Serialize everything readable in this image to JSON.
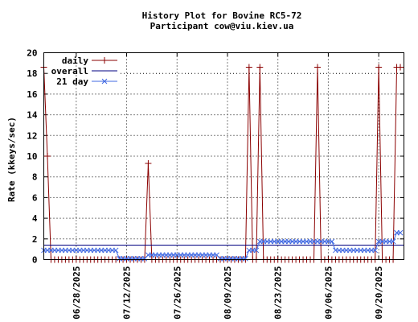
{
  "chart_data": {
    "type": "line",
    "title": "History Plot for Bovine RC5-72",
    "subtitle": "Participant cow@viu.kiev.ua",
    "xlabel": "",
    "ylabel": "Rate (kkeys/sec)",
    "ylim": [
      0,
      20
    ],
    "yticks": [
      "0",
      "2",
      "4",
      "6",
      "8",
      "10",
      "12",
      "14",
      "16",
      "18",
      "20"
    ],
    "xlim": [
      "2025-06-19",
      "2025-09-27"
    ],
    "xticks": [
      "06/28/2025",
      "07/12/2025",
      "07/26/2025",
      "08/09/2025",
      "08/23/2025",
      "09/06/2025",
      "09/20/2025"
    ],
    "xtick_dates": [
      "2025-06-28",
      "2025-07-12",
      "2025-07-26",
      "2025-08-09",
      "2025-08-23",
      "2025-09-06",
      "2025-09-20"
    ],
    "grid": true,
    "legend_position": "top-left",
    "series": [
      {
        "name": "daily",
        "color": "#8b0000",
        "marker": "plus",
        "points": [
          [
            "2025-06-19",
            18.6
          ],
          [
            "2025-06-20",
            10.0
          ],
          [
            "2025-06-21",
            0.0
          ],
          [
            "2025-06-22",
            0.0
          ],
          [
            "2025-06-23",
            0.0
          ],
          [
            "2025-06-24",
            0.0
          ],
          [
            "2025-06-25",
            0.0
          ],
          [
            "2025-06-26",
            0.0
          ],
          [
            "2025-06-27",
            0.0
          ],
          [
            "2025-06-28",
            0.0
          ],
          [
            "2025-06-29",
            0.0
          ],
          [
            "2025-06-30",
            0.0
          ],
          [
            "2025-07-01",
            0.0
          ],
          [
            "2025-07-02",
            0.0
          ],
          [
            "2025-07-03",
            0.0
          ],
          [
            "2025-07-04",
            0.0
          ],
          [
            "2025-07-05",
            0.0
          ],
          [
            "2025-07-06",
            0.0
          ],
          [
            "2025-07-07",
            0.0
          ],
          [
            "2025-07-08",
            0.0
          ],
          [
            "2025-07-09",
            0.0
          ],
          [
            "2025-07-10",
            0.0
          ],
          [
            "2025-07-11",
            0.0
          ],
          [
            "2025-07-12",
            0.0
          ],
          [
            "2025-07-13",
            0.0
          ],
          [
            "2025-07-14",
            0.0
          ],
          [
            "2025-07-15",
            0.0
          ],
          [
            "2025-07-16",
            0.0
          ],
          [
            "2025-07-17",
            0.0
          ],
          [
            "2025-07-18",
            9.3
          ],
          [
            "2025-07-19",
            0.0
          ],
          [
            "2025-07-20",
            0.0
          ],
          [
            "2025-07-21",
            0.0
          ],
          [
            "2025-07-22",
            0.0
          ],
          [
            "2025-07-23",
            0.0
          ],
          [
            "2025-07-24",
            0.0
          ],
          [
            "2025-07-25",
            0.0
          ],
          [
            "2025-07-26",
            0.0
          ],
          [
            "2025-07-27",
            0.0
          ],
          [
            "2025-07-28",
            0.0
          ],
          [
            "2025-07-29",
            0.0
          ],
          [
            "2025-07-30",
            0.0
          ],
          [
            "2025-07-31",
            0.0
          ],
          [
            "2025-08-01",
            0.0
          ],
          [
            "2025-08-02",
            0.0
          ],
          [
            "2025-08-03",
            0.0
          ],
          [
            "2025-08-04",
            0.0
          ],
          [
            "2025-08-05",
            0.0
          ],
          [
            "2025-08-06",
            0.0
          ],
          [
            "2025-08-07",
            0.0
          ],
          [
            "2025-08-08",
            0.0
          ],
          [
            "2025-08-09",
            0.0
          ],
          [
            "2025-08-10",
            0.0
          ],
          [
            "2025-08-11",
            0.0
          ],
          [
            "2025-08-12",
            0.0
          ],
          [
            "2025-08-13",
            0.0
          ],
          [
            "2025-08-14",
            0.0
          ],
          [
            "2025-08-15",
            18.6
          ],
          [
            "2025-08-16",
            0.0
          ],
          [
            "2025-08-17",
            0.0
          ],
          [
            "2025-08-18",
            18.6
          ],
          [
            "2025-08-19",
            0.0
          ],
          [
            "2025-08-20",
            0.0
          ],
          [
            "2025-08-21",
            0.0
          ],
          [
            "2025-08-22",
            0.0
          ],
          [
            "2025-08-23",
            0.0
          ],
          [
            "2025-08-24",
            0.0
          ],
          [
            "2025-08-25",
            0.0
          ],
          [
            "2025-08-26",
            0.0
          ],
          [
            "2025-08-27",
            0.0
          ],
          [
            "2025-08-28",
            0.0
          ],
          [
            "2025-08-29",
            0.0
          ],
          [
            "2025-08-30",
            0.0
          ],
          [
            "2025-08-31",
            0.0
          ],
          [
            "2025-09-01",
            0.0
          ],
          [
            "2025-09-02",
            0.0
          ],
          [
            "2025-09-03",
            18.6
          ],
          [
            "2025-09-04",
            0.0
          ],
          [
            "2025-09-05",
            0.0
          ],
          [
            "2025-09-06",
            0.0
          ],
          [
            "2025-09-07",
            0.0
          ],
          [
            "2025-09-08",
            0.0
          ],
          [
            "2025-09-09",
            0.0
          ],
          [
            "2025-09-10",
            0.0
          ],
          [
            "2025-09-11",
            0.0
          ],
          [
            "2025-09-12",
            0.0
          ],
          [
            "2025-09-13",
            0.0
          ],
          [
            "2025-09-14",
            0.0
          ],
          [
            "2025-09-15",
            0.0
          ],
          [
            "2025-09-16",
            0.0
          ],
          [
            "2025-09-17",
            0.0
          ],
          [
            "2025-09-18",
            0.0
          ],
          [
            "2025-09-19",
            0.0
          ],
          [
            "2025-09-20",
            18.6
          ],
          [
            "2025-09-21",
            0.0
          ],
          [
            "2025-09-22",
            0.0
          ],
          [
            "2025-09-23",
            0.0
          ],
          [
            "2025-09-24",
            0.0
          ],
          [
            "2025-09-25",
            18.6
          ],
          [
            "2025-09-26",
            18.6
          ]
        ]
      },
      {
        "name": "overall",
        "color": "#000080",
        "marker": "none",
        "points": [
          [
            "2025-06-19",
            1.4
          ],
          [
            "2025-09-27",
            1.4
          ]
        ]
      },
      {
        "name": "21 day",
        "color": "#4169e1",
        "marker": "cross",
        "points": [
          [
            "2025-06-19",
            0.9
          ],
          [
            "2025-06-20",
            0.9
          ],
          [
            "2025-06-21",
            0.9
          ],
          [
            "2025-06-22",
            0.9
          ],
          [
            "2025-06-23",
            0.9
          ],
          [
            "2025-06-24",
            0.9
          ],
          [
            "2025-06-25",
            0.9
          ],
          [
            "2025-06-26",
            0.9
          ],
          [
            "2025-06-27",
            0.9
          ],
          [
            "2025-06-28",
            0.9
          ],
          [
            "2025-06-29",
            0.9
          ],
          [
            "2025-06-30",
            0.9
          ],
          [
            "2025-07-01",
            0.9
          ],
          [
            "2025-07-02",
            0.9
          ],
          [
            "2025-07-03",
            0.9
          ],
          [
            "2025-07-04",
            0.9
          ],
          [
            "2025-07-05",
            0.9
          ],
          [
            "2025-07-06",
            0.9
          ],
          [
            "2025-07-07",
            0.9
          ],
          [
            "2025-07-08",
            0.9
          ],
          [
            "2025-07-09",
            0.9
          ],
          [
            "2025-07-10",
            0.1
          ],
          [
            "2025-07-11",
            0.1
          ],
          [
            "2025-07-12",
            0.1
          ],
          [
            "2025-07-13",
            0.1
          ],
          [
            "2025-07-14",
            0.1
          ],
          [
            "2025-07-15",
            0.1
          ],
          [
            "2025-07-16",
            0.1
          ],
          [
            "2025-07-17",
            0.1
          ],
          [
            "2025-07-18",
            0.45
          ],
          [
            "2025-07-19",
            0.45
          ],
          [
            "2025-07-20",
            0.45
          ],
          [
            "2025-07-21",
            0.45
          ],
          [
            "2025-07-22",
            0.45
          ],
          [
            "2025-07-23",
            0.45
          ],
          [
            "2025-07-24",
            0.45
          ],
          [
            "2025-07-25",
            0.45
          ],
          [
            "2025-07-26",
            0.45
          ],
          [
            "2025-07-27",
            0.45
          ],
          [
            "2025-07-28",
            0.45
          ],
          [
            "2025-07-29",
            0.45
          ],
          [
            "2025-07-30",
            0.45
          ],
          [
            "2025-07-31",
            0.45
          ],
          [
            "2025-08-01",
            0.45
          ],
          [
            "2025-08-02",
            0.45
          ],
          [
            "2025-08-03",
            0.45
          ],
          [
            "2025-08-04",
            0.45
          ],
          [
            "2025-08-05",
            0.45
          ],
          [
            "2025-08-06",
            0.45
          ],
          [
            "2025-08-07",
            0.1
          ],
          [
            "2025-08-08",
            0.1
          ],
          [
            "2025-08-09",
            0.1
          ],
          [
            "2025-08-10",
            0.1
          ],
          [
            "2025-08-11",
            0.1
          ],
          [
            "2025-08-12",
            0.1
          ],
          [
            "2025-08-13",
            0.1
          ],
          [
            "2025-08-14",
            0.1
          ],
          [
            "2025-08-15",
            0.9
          ],
          [
            "2025-08-16",
            0.9
          ],
          [
            "2025-08-17",
            0.9
          ],
          [
            "2025-08-18",
            1.75
          ],
          [
            "2025-08-19",
            1.75
          ],
          [
            "2025-08-20",
            1.75
          ],
          [
            "2025-08-21",
            1.75
          ],
          [
            "2025-08-22",
            1.75
          ],
          [
            "2025-08-23",
            1.75
          ],
          [
            "2025-08-24",
            1.75
          ],
          [
            "2025-08-25",
            1.75
          ],
          [
            "2025-08-26",
            1.75
          ],
          [
            "2025-08-27",
            1.75
          ],
          [
            "2025-08-28",
            1.75
          ],
          [
            "2025-08-29",
            1.75
          ],
          [
            "2025-08-30",
            1.75
          ],
          [
            "2025-08-31",
            1.75
          ],
          [
            "2025-09-01",
            1.75
          ],
          [
            "2025-09-02",
            1.75
          ],
          [
            "2025-09-03",
            1.75
          ],
          [
            "2025-09-04",
            1.75
          ],
          [
            "2025-09-05",
            1.75
          ],
          [
            "2025-09-06",
            1.75
          ],
          [
            "2025-09-07",
            1.75
          ],
          [
            "2025-09-08",
            0.9
          ],
          [
            "2025-09-09",
            0.9
          ],
          [
            "2025-09-10",
            0.9
          ],
          [
            "2025-09-11",
            0.9
          ],
          [
            "2025-09-12",
            0.9
          ],
          [
            "2025-09-13",
            0.9
          ],
          [
            "2025-09-14",
            0.9
          ],
          [
            "2025-09-15",
            0.9
          ],
          [
            "2025-09-16",
            0.9
          ],
          [
            "2025-09-17",
            0.9
          ],
          [
            "2025-09-18",
            0.9
          ],
          [
            "2025-09-19",
            0.9
          ],
          [
            "2025-09-20",
            1.75
          ],
          [
            "2025-09-21",
            1.75
          ],
          [
            "2025-09-22",
            1.75
          ],
          [
            "2025-09-23",
            1.75
          ],
          [
            "2025-09-24",
            1.75
          ],
          [
            "2025-09-25",
            2.6
          ],
          [
            "2025-09-26",
            2.6
          ]
        ]
      }
    ]
  }
}
